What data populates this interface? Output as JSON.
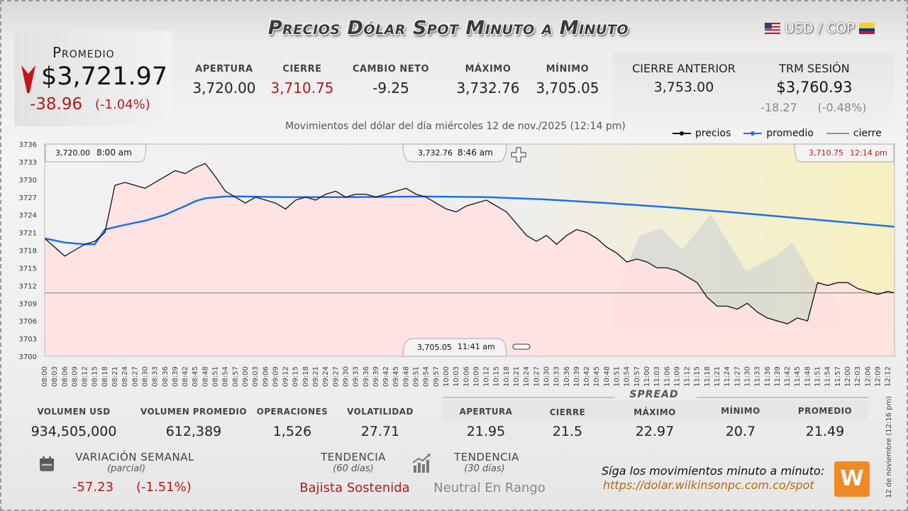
{
  "header": {
    "title": "Precios Dólar Spot Minuto a Minuto",
    "pair": "USD / COP"
  },
  "average": {
    "label": "Promedio",
    "value": "$3,721.97",
    "change": "-38.96",
    "change_pct": "(-1.04%)"
  },
  "stats": {
    "open_label": "APERTURA",
    "open": "3,720.00",
    "close_label": "CIERRE",
    "close": "3,710.75",
    "net_label": "CAMBIO NETO",
    "net": "-9.25",
    "max_label": "MÁXIMO",
    "max": "3,732.76",
    "min_label": "MÍNIMO",
    "min": "3,705.05"
  },
  "previous": {
    "label": "CIERRE ANTERIOR",
    "value": "3,753.00",
    "trm_label": "TRM SESIÓN",
    "trm": "$3,760.93",
    "trm_change": "-18.27",
    "trm_pct": "(-0.48%)"
  },
  "chart_subtitle": "Movimientos del dólar del día miércoles 12 de nov./2025 (12:14 pm)",
  "legend": {
    "prices": "precios",
    "average": "promedio",
    "close": "cierre"
  },
  "colors": {
    "prices": "#111111",
    "average": "#1a73e8",
    "fill": "#ffe1e1",
    "down": "#b01c1c"
  },
  "tooltips": {
    "open_tip": {
      "price": "3,720.00",
      "time": "8:00 am"
    },
    "max_tip": {
      "price": "3,732.76",
      "time": "8:46 am"
    },
    "close_tip": {
      "price": "3,710.75",
      "time": "12:14 pm"
    },
    "min_tip": {
      "price": "3,705.05",
      "time": "11:41 am"
    }
  },
  "chart_data": {
    "type": "line",
    "x_unit": "time",
    "ylim": [
      3700,
      3736
    ],
    "yticks": [
      "3736",
      "3733",
      "3730",
      "3727",
      "3724",
      "3721",
      "3718",
      "3715",
      "3712",
      "3709",
      "3706",
      "3703",
      "3700"
    ],
    "xticks": [
      "08:00",
      "08:03",
      "08:06",
      "08:09",
      "08:12",
      "08:15",
      "08:18",
      "08:21",
      "08:24",
      "08:27",
      "08:30",
      "08:33",
      "08:36",
      "08:39",
      "08:42",
      "08:45",
      "08:48",
      "08:51",
      "08:54",
      "08:57",
      "09:00",
      "09:03",
      "09:06",
      "09:09",
      "09:12",
      "09:15",
      "09:18",
      "09:21",
      "09:24",
      "09:27",
      "09:30",
      "09:33",
      "09:36",
      "09:39",
      "09:42",
      "09:45",
      "09:48",
      "09:51",
      "09:54",
      "09:57",
      "10:00",
      "10:03",
      "10:06",
      "10:09",
      "10:12",
      "10:15",
      "10:18",
      "10:21",
      "10:24",
      "10:27",
      "10:30",
      "10:33",
      "10:36",
      "10:39",
      "10:42",
      "10:45",
      "10:48",
      "10:51",
      "10:54",
      "10:57",
      "11:00",
      "11:03",
      "11:06",
      "11:09",
      "11:12",
      "11:15",
      "11:18",
      "11:21",
      "11:24",
      "11:27",
      "11:30",
      "11:33",
      "11:36",
      "11:39",
      "11:42",
      "11:45",
      "11:48",
      "11:51",
      "11:54",
      "11:57",
      "12:00",
      "12:03",
      "12:06",
      "12:09",
      "12:12"
    ],
    "close_reference": 3710.75,
    "series": [
      {
        "name": "precios",
        "x": [
          "08:00",
          "08:03",
          "08:06",
          "08:09",
          "08:12",
          "08:15",
          "08:18",
          "08:21",
          "08:24",
          "08:27",
          "08:30",
          "08:33",
          "08:36",
          "08:39",
          "08:42",
          "08:45",
          "08:48",
          "08:51",
          "08:54",
          "08:57",
          "09:00",
          "09:03",
          "09:06",
          "09:09",
          "09:12",
          "09:15",
          "09:18",
          "09:21",
          "09:24",
          "09:27",
          "09:30",
          "09:33",
          "09:36",
          "09:39",
          "09:42",
          "09:45",
          "09:48",
          "09:51",
          "09:54",
          "09:57",
          "10:00",
          "10:03",
          "10:06",
          "10:09",
          "10:12",
          "10:15",
          "10:18",
          "10:21",
          "10:24",
          "10:27",
          "10:30",
          "10:33",
          "10:36",
          "10:39",
          "10:42",
          "10:45",
          "10:48",
          "10:51",
          "10:54",
          "10:57",
          "11:00",
          "11:03",
          "11:06",
          "11:09",
          "11:12",
          "11:15",
          "11:18",
          "11:21",
          "11:24",
          "11:27",
          "11:30",
          "11:33",
          "11:36",
          "11:39",
          "11:42",
          "11:45",
          "11:48",
          "11:51",
          "11:54",
          "11:57",
          "12:00",
          "12:03",
          "12:06",
          "12:09",
          "12:12",
          "12:14"
        ],
        "y": [
          3720.0,
          3718.5,
          3717.0,
          3718.0,
          3719.0,
          3719.5,
          3721.0,
          3729.0,
          3729.5,
          3729.0,
          3728.5,
          3729.5,
          3730.5,
          3731.5,
          3731.0,
          3732.0,
          3732.7,
          3730.5,
          3728.0,
          3727.0,
          3726.0,
          3727.0,
          3726.5,
          3726.0,
          3725.0,
          3726.5,
          3727.0,
          3726.5,
          3727.5,
          3728.0,
          3727.0,
          3727.5,
          3727.5,
          3727.0,
          3727.5,
          3728.0,
          3728.5,
          3727.5,
          3727.0,
          3726.0,
          3725.0,
          3724.5,
          3725.5,
          3726.0,
          3726.5,
          3725.5,
          3724.5,
          3722.5,
          3720.5,
          3719.5,
          3720.5,
          3719.0,
          3720.5,
          3721.5,
          3721.0,
          3720.0,
          3718.5,
          3717.5,
          3716.0,
          3716.5,
          3716.0,
          3715.0,
          3715.0,
          3714.5,
          3713.5,
          3712.5,
          3710.0,
          3708.5,
          3708.5,
          3708.0,
          3709.0,
          3707.5,
          3706.5,
          3706.0,
          3705.5,
          3706.5,
          3706.0,
          3712.5,
          3712.0,
          3712.5,
          3712.5,
          3711.5,
          3711.0,
          3710.5,
          3711.0,
          3710.75
        ]
      },
      {
        "name": "promedio",
        "x": [
          "08:00",
          "08:06",
          "08:12",
          "08:15",
          "08:18",
          "08:24",
          "08:30",
          "08:36",
          "08:42",
          "08:45",
          "08:48",
          "08:54",
          "09:00",
          "09:12",
          "09:30",
          "09:54",
          "10:12",
          "10:30",
          "10:48",
          "11:06",
          "11:24",
          "11:42",
          "12:00",
          "12:14"
        ],
        "y": [
          3720.0,
          3719.3,
          3719.0,
          3719.0,
          3721.5,
          3722.3,
          3723.0,
          3724.0,
          3725.5,
          3726.3,
          3726.8,
          3727.1,
          3727.1,
          3727.0,
          3727.0,
          3727.1,
          3727.0,
          3726.6,
          3726.0,
          3725.3,
          3724.5,
          3723.6,
          3722.7,
          3721.97
        ]
      }
    ]
  },
  "bottom": {
    "vol_label": "VOLUMEN USD",
    "vol": "934,505,000",
    "vol_avg_label": "VOLUMEN PROMEDIO",
    "vol_avg": "612,389",
    "ops_label": "OPERACIONES",
    "ops": "1,526",
    "volat_label": "VOLATILIDAD",
    "volat": "27.71",
    "spread_title": "SPREAD",
    "sp_open_label": "APERTURA",
    "sp_open": "21.95",
    "sp_close_label": "CIERRE",
    "sp_close": "21.5",
    "sp_max_label": "MÁXIMO",
    "sp_max": "22.97",
    "sp_min_label": "MÍNIMO",
    "sp_min": "20.7",
    "sp_avg_label": "PROMEDIO",
    "sp_avg": "21.49"
  },
  "footer": {
    "weekly_label": "VARIACIÓN SEMANAL",
    "weekly_sub": "(parcial)",
    "weekly_value": "-57.23",
    "weekly_pct": "(-1.51%)",
    "trend60_label": "TENDENCIA",
    "trend60_sub": "(60 días)",
    "trend60": "Bajista Sostenida",
    "trend30_label": "TENDENCIA",
    "trend30_sub": "(30 días)",
    "trend30": "Neutral En Rango",
    "follow": "Síga los movimientos minuto a minuto:",
    "url": "https://dolar.wilkinsonpc.com.co/spot",
    "side_date": "12 de noviembre (12:16 pm)"
  }
}
